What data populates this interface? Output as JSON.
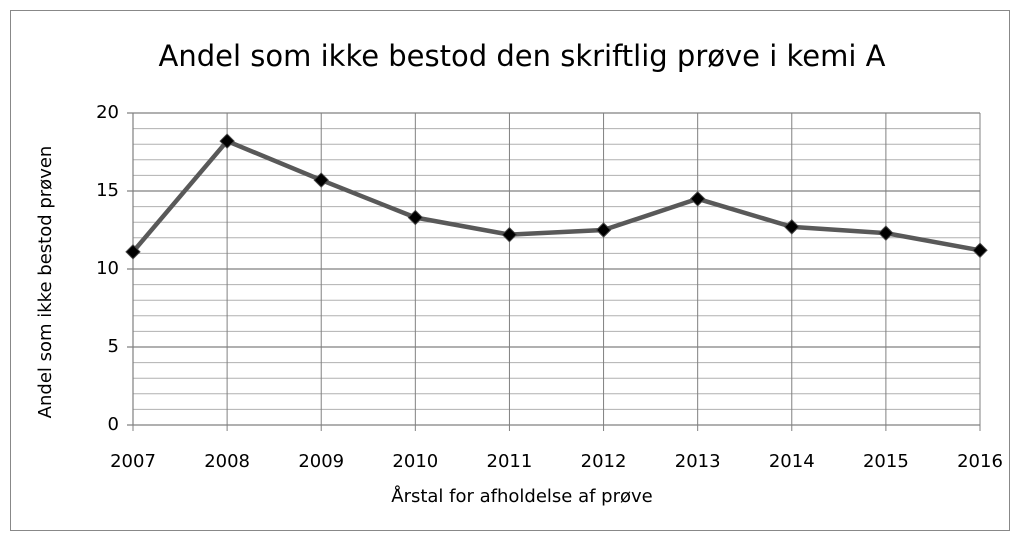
{
  "chart_data": {
    "type": "line",
    "title": "Andel som ikke bestod den skriftlig prøve i kemi A",
    "x_label": "Årstal for afholdelse af prøve",
    "y_label": "Andel som ikke bestod prøven",
    "categories": [
      "2007",
      "2008",
      "2009",
      "2010",
      "2011",
      "2012",
      "2013",
      "2014",
      "2015",
      "2016"
    ],
    "series": [
      {
        "name": "Andel",
        "color": "#595959",
        "marker_color": "#000000",
        "values": [
          11.1,
          18.2,
          15.7,
          13.3,
          12.2,
          12.5,
          14.5,
          12.7,
          12.3,
          11.2
        ]
      }
    ],
    "ylim": [
      0,
      20
    ],
    "yticks": [
      0,
      5,
      10,
      15,
      20
    ],
    "minor_yticks": [
      1,
      2,
      3,
      4,
      6,
      7,
      8,
      9,
      11,
      12,
      13,
      14,
      16,
      17,
      18,
      19
    ],
    "grid": true
  }
}
